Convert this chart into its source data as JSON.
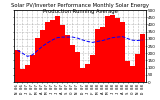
{
  "title": "Solar PV/Inverter Performance Monthly Solar Energy Production Running Average",
  "months": [
    "N 06",
    "D 06",
    "J 07",
    "F 07",
    "M 07",
    "A 07",
    "M 07",
    "J 07",
    "J 07",
    "A 07",
    "S 07",
    "O 07",
    "N 07",
    "D 07",
    "J 08",
    "F 08",
    "M 08",
    "A 08",
    "M 08",
    "J 08",
    "J 08",
    "A 08",
    "S 08",
    "O 08",
    "N 08",
    "D 08"
  ],
  "values": [
    220,
    90,
    115,
    185,
    305,
    360,
    415,
    430,
    455,
    395,
    325,
    255,
    205,
    95,
    125,
    185,
    365,
    385,
    455,
    465,
    445,
    415,
    145,
    110,
    195,
    335
  ],
  "running_avg": [
    220,
    200,
    178,
    188,
    218,
    248,
    272,
    292,
    308,
    312,
    312,
    312,
    305,
    292,
    282,
    275,
    282,
    288,
    298,
    308,
    312,
    315,
    302,
    290,
    288,
    292
  ],
  "bar_color": "#ff0000",
  "avg_color": "#0000ff",
  "bg_color": "#ffffff",
  "grid_color": "#808080",
  "ylim": [
    0,
    500
  ],
  "yticks": [
    0,
    50,
    100,
    150,
    200,
    250,
    300,
    350,
    400,
    450,
    500
  ],
  "title_fontsize": 3.8,
  "tick_fontsize": 3.0,
  "legend_fontsize": 3.0,
  "right_ytick_labels": [
    "500",
    "450",
    "400",
    "350",
    "300",
    "250",
    "200",
    "150",
    "100",
    "50",
    "0"
  ]
}
